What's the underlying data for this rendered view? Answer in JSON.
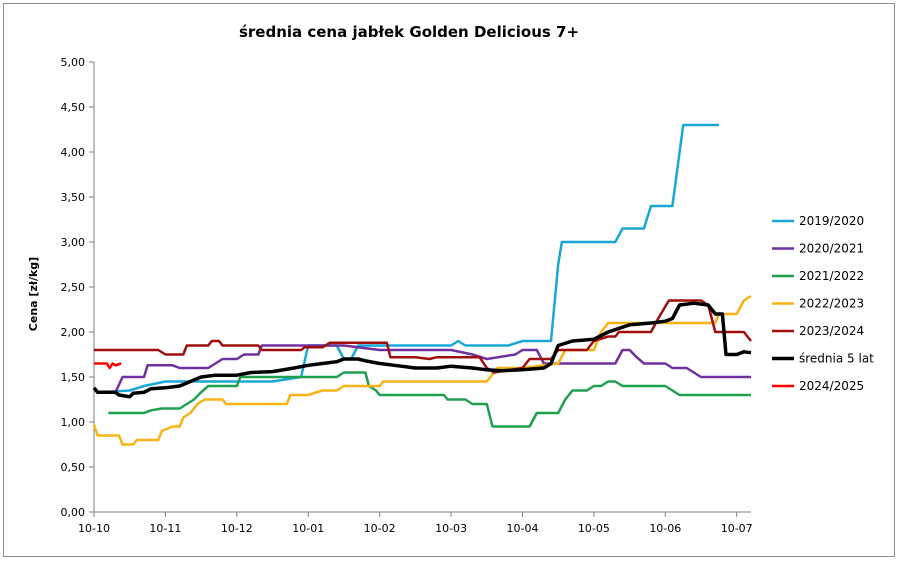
{
  "chart_data": {
    "type": "line",
    "title": "średnia cena jabłek Golden Delicious 7+",
    "ylabel": "Cena [zł/kg]",
    "xlabel": "",
    "ylim": [
      0,
      5
    ],
    "yticks": [
      "0,00",
      "0,50",
      "1,00",
      "1,50",
      "2,00",
      "2,50",
      "3,00",
      "3,50",
      "4,00",
      "4,50",
      "5,00"
    ],
    "xlim": [
      0,
      9.2
    ],
    "xticks": [
      "10-10",
      "10-11",
      "10-12",
      "10-01",
      "10-02",
      "10-03",
      "10-04",
      "10-05",
      "10-06",
      "10-07"
    ],
    "grid": false,
    "legend_position": "right",
    "series": [
      {
        "name": "2019/2020",
        "color": "#1aa7d8",
        "points": [
          [
            0.1,
            1.33
          ],
          [
            0.5,
            1.35
          ],
          [
            0.7,
            1.4
          ],
          [
            1.0,
            1.45
          ],
          [
            1.5,
            1.45
          ],
          [
            2.0,
            1.45
          ],
          [
            2.5,
            1.45
          ],
          [
            2.9,
            1.5
          ],
          [
            3.0,
            1.85
          ],
          [
            3.4,
            1.85
          ],
          [
            3.5,
            1.7
          ],
          [
            3.6,
            1.7
          ],
          [
            3.7,
            1.85
          ],
          [
            4.5,
            1.85
          ],
          [
            5.0,
            1.85
          ],
          [
            5.1,
            1.9
          ],
          [
            5.2,
            1.85
          ],
          [
            5.8,
            1.85
          ],
          [
            6.0,
            1.9
          ],
          [
            6.4,
            1.9
          ],
          [
            6.5,
            2.75
          ],
          [
            6.55,
            3.0
          ],
          [
            7.0,
            3.0
          ],
          [
            7.3,
            3.0
          ],
          [
            7.4,
            3.15
          ],
          [
            7.7,
            3.15
          ],
          [
            7.8,
            3.4
          ],
          [
            8.1,
            3.4
          ],
          [
            8.25,
            4.3
          ],
          [
            8.75,
            4.3
          ]
        ]
      },
      {
        "name": "2020/2021",
        "color": "#7030a0",
        "points": [
          [
            0.3,
            1.33
          ],
          [
            0.4,
            1.5
          ],
          [
            0.7,
            1.5
          ],
          [
            0.75,
            1.63
          ],
          [
            1.1,
            1.63
          ],
          [
            1.2,
            1.6
          ],
          [
            1.6,
            1.6
          ],
          [
            1.7,
            1.65
          ],
          [
            1.8,
            1.7
          ],
          [
            2.0,
            1.7
          ],
          [
            2.1,
            1.75
          ],
          [
            2.3,
            1.75
          ],
          [
            2.35,
            1.85
          ],
          [
            3.0,
            1.85
          ],
          [
            3.5,
            1.85
          ],
          [
            4.0,
            1.8
          ],
          [
            5.0,
            1.8
          ],
          [
            5.3,
            1.75
          ],
          [
            5.5,
            1.7
          ],
          [
            5.9,
            1.75
          ],
          [
            6.0,
            1.8
          ],
          [
            6.2,
            1.8
          ],
          [
            6.3,
            1.65
          ],
          [
            6.5,
            1.65
          ],
          [
            7.0,
            1.65
          ],
          [
            7.3,
            1.65
          ],
          [
            7.4,
            1.8
          ],
          [
            7.5,
            1.8
          ],
          [
            7.6,
            1.72
          ],
          [
            7.7,
            1.65
          ],
          [
            8.0,
            1.65
          ],
          [
            8.1,
            1.6
          ],
          [
            8.3,
            1.6
          ],
          [
            8.5,
            1.5
          ],
          [
            8.8,
            1.5
          ],
          [
            9.2,
            1.5
          ]
        ]
      },
      {
        "name": "2021/2022",
        "color": "#1fa04f",
        "points": [
          [
            0.2,
            1.1
          ],
          [
            0.7,
            1.1
          ],
          [
            0.8,
            1.13
          ],
          [
            0.95,
            1.15
          ],
          [
            1.2,
            1.15
          ],
          [
            1.3,
            1.2
          ],
          [
            1.4,
            1.25
          ],
          [
            1.5,
            1.33
          ],
          [
            1.6,
            1.4
          ],
          [
            2.0,
            1.4
          ],
          [
            2.05,
            1.5
          ],
          [
            2.5,
            1.5
          ],
          [
            3.0,
            1.5
          ],
          [
            3.4,
            1.5
          ],
          [
            3.5,
            1.55
          ],
          [
            3.8,
            1.55
          ],
          [
            3.85,
            1.4
          ],
          [
            3.95,
            1.35
          ],
          [
            4.0,
            1.3
          ],
          [
            4.5,
            1.3
          ],
          [
            4.9,
            1.3
          ],
          [
            4.95,
            1.25
          ],
          [
            5.2,
            1.25
          ],
          [
            5.3,
            1.2
          ],
          [
            5.5,
            1.2
          ],
          [
            5.58,
            0.95
          ],
          [
            6.0,
            0.95
          ],
          [
            6.1,
            0.95
          ],
          [
            6.2,
            1.1
          ],
          [
            6.5,
            1.1
          ],
          [
            6.6,
            1.25
          ],
          [
            6.7,
            1.35
          ],
          [
            6.9,
            1.35
          ],
          [
            7.0,
            1.4
          ],
          [
            7.1,
            1.4
          ],
          [
            7.2,
            1.45
          ],
          [
            7.3,
            1.45
          ],
          [
            7.4,
            1.4
          ],
          [
            8.0,
            1.4
          ],
          [
            8.1,
            1.35
          ],
          [
            8.2,
            1.3
          ],
          [
            8.8,
            1.3
          ],
          [
            9.2,
            1.3
          ]
        ]
      },
      {
        "name": "2022/2023",
        "color": "#f6b415",
        "points": [
          [
            0.0,
            0.97
          ],
          [
            0.05,
            0.85
          ],
          [
            0.35,
            0.85
          ],
          [
            0.4,
            0.75
          ],
          [
            0.55,
            0.75
          ],
          [
            0.6,
            0.8
          ],
          [
            0.9,
            0.8
          ],
          [
            0.95,
            0.9
          ],
          [
            1.1,
            0.95
          ],
          [
            1.2,
            0.95
          ],
          [
            1.25,
            1.05
          ],
          [
            1.35,
            1.1
          ],
          [
            1.45,
            1.2
          ],
          [
            1.55,
            1.25
          ],
          [
            1.8,
            1.25
          ],
          [
            1.85,
            1.2
          ],
          [
            2.5,
            1.2
          ],
          [
            2.7,
            1.2
          ],
          [
            2.75,
            1.3
          ],
          [
            3.0,
            1.3
          ],
          [
            3.2,
            1.35
          ],
          [
            3.4,
            1.35
          ],
          [
            3.5,
            1.4
          ],
          [
            4.0,
            1.4
          ],
          [
            4.05,
            1.45
          ],
          [
            5.0,
            1.45
          ],
          [
            5.5,
            1.45
          ],
          [
            5.65,
            1.6
          ],
          [
            6.0,
            1.6
          ],
          [
            6.5,
            1.65
          ],
          [
            6.6,
            1.8
          ],
          [
            7.0,
            1.8
          ],
          [
            7.1,
            2.0
          ],
          [
            7.2,
            2.1
          ],
          [
            7.8,
            2.1
          ],
          [
            8.3,
            2.1
          ],
          [
            8.7,
            2.1
          ],
          [
            8.75,
            2.2
          ],
          [
            9.0,
            2.2
          ],
          [
            9.1,
            2.35
          ],
          [
            9.2,
            2.4
          ]
        ]
      },
      {
        "name": "2023/2024",
        "color": "#a00d0d",
        "points": [
          [
            0.0,
            1.8
          ],
          [
            0.9,
            1.8
          ],
          [
            1.0,
            1.75
          ],
          [
            1.25,
            1.75
          ],
          [
            1.3,
            1.85
          ],
          [
            1.6,
            1.85
          ],
          [
            1.65,
            1.9
          ],
          [
            1.75,
            1.9
          ],
          [
            1.8,
            1.85
          ],
          [
            2.3,
            1.85
          ],
          [
            2.35,
            1.8
          ],
          [
            2.9,
            1.8
          ],
          [
            2.95,
            1.83
          ],
          [
            3.2,
            1.83
          ],
          [
            3.3,
            1.88
          ],
          [
            3.8,
            1.88
          ],
          [
            4.1,
            1.88
          ],
          [
            4.15,
            1.72
          ],
          [
            4.5,
            1.72
          ],
          [
            4.7,
            1.7
          ],
          [
            4.8,
            1.72
          ],
          [
            5.2,
            1.72
          ],
          [
            5.4,
            1.72
          ],
          [
            5.5,
            1.6
          ],
          [
            5.6,
            1.55
          ],
          [
            6.0,
            1.6
          ],
          [
            6.1,
            1.7
          ],
          [
            6.4,
            1.7
          ],
          [
            6.5,
            1.8
          ],
          [
            6.9,
            1.8
          ],
          [
            7.0,
            1.9
          ],
          [
            7.2,
            1.95
          ],
          [
            7.3,
            1.95
          ],
          [
            7.35,
            2.0
          ],
          [
            7.8,
            2.0
          ],
          [
            7.9,
            2.15
          ],
          [
            8.05,
            2.35
          ],
          [
            8.5,
            2.35
          ],
          [
            8.6,
            2.3
          ],
          [
            8.7,
            2.0
          ],
          [
            9.1,
            2.0
          ],
          [
            9.2,
            1.9
          ]
        ]
      },
      {
        "name": "średnia 5 lat",
        "color": "#000000",
        "points": [
          [
            0.0,
            1.38
          ],
          [
            0.05,
            1.33
          ],
          [
            0.3,
            1.33
          ],
          [
            0.35,
            1.3
          ],
          [
            0.5,
            1.28
          ],
          [
            0.55,
            1.32
          ],
          [
            0.7,
            1.33
          ],
          [
            0.8,
            1.37
          ],
          [
            1.0,
            1.38
          ],
          [
            1.2,
            1.4
          ],
          [
            1.35,
            1.45
          ],
          [
            1.5,
            1.5
          ],
          [
            1.7,
            1.52
          ],
          [
            2.0,
            1.52
          ],
          [
            2.2,
            1.55
          ],
          [
            2.5,
            1.56
          ],
          [
            2.8,
            1.6
          ],
          [
            3.0,
            1.63
          ],
          [
            3.2,
            1.65
          ],
          [
            3.4,
            1.67
          ],
          [
            3.5,
            1.7
          ],
          [
            3.7,
            1.7
          ],
          [
            3.8,
            1.68
          ],
          [
            4.0,
            1.65
          ],
          [
            4.3,
            1.62
          ],
          [
            4.5,
            1.6
          ],
          [
            4.8,
            1.6
          ],
          [
            5.0,
            1.62
          ],
          [
            5.3,
            1.6
          ],
          [
            5.5,
            1.58
          ],
          [
            5.7,
            1.57
          ],
          [
            6.0,
            1.58
          ],
          [
            6.3,
            1.6
          ],
          [
            6.4,
            1.65
          ],
          [
            6.5,
            1.85
          ],
          [
            6.7,
            1.9
          ],
          [
            7.0,
            1.92
          ],
          [
            7.2,
            2.0
          ],
          [
            7.5,
            2.08
          ],
          [
            7.8,
            2.1
          ],
          [
            8.0,
            2.12
          ],
          [
            8.1,
            2.15
          ],
          [
            8.2,
            2.3
          ],
          [
            8.4,
            2.32
          ],
          [
            8.6,
            2.3
          ],
          [
            8.7,
            2.2
          ],
          [
            8.8,
            2.2
          ],
          [
            8.85,
            1.75
          ],
          [
            9.0,
            1.75
          ],
          [
            9.1,
            1.78
          ],
          [
            9.2,
            1.77
          ]
        ]
      },
      {
        "name": "2024/2025",
        "color": "#ff0000",
        "points": [
          [
            0.0,
            1.65
          ],
          [
            0.18,
            1.65
          ],
          [
            0.22,
            1.6
          ],
          [
            0.26,
            1.65
          ],
          [
            0.3,
            1.63
          ],
          [
            0.38,
            1.65
          ]
        ]
      }
    ]
  }
}
